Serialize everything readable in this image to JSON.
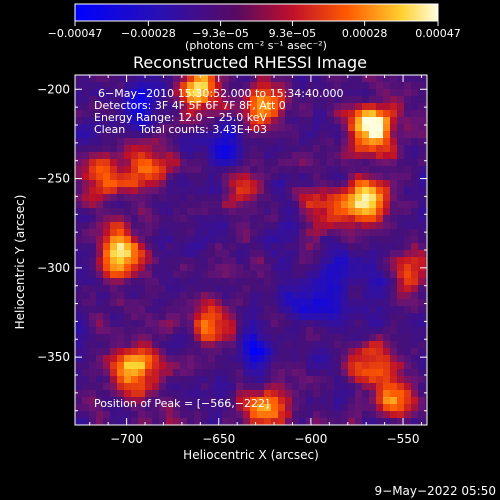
{
  "chart_data": {
    "type": "heatmap",
    "title": "Reconstructed RHESSI Image",
    "xlabel": "Heliocentric X (arcsec)",
    "ylabel": "Heliocentric Y (arcsec)",
    "xlim": [
      -728,
      -537
    ],
    "ylim": [
      -388,
      -192
    ],
    "x_ticks": [
      {
        "value": -700,
        "label": "−700"
      },
      {
        "value": -650,
        "label": "−650"
      },
      {
        "value": -600,
        "label": "−600"
      },
      {
        "value": -550,
        "label": "−550"
      }
    ],
    "y_ticks": [
      {
        "value": -200,
        "label": "−200"
      },
      {
        "value": -250,
        "label": "−250"
      },
      {
        "value": -300,
        "label": "−300"
      },
      {
        "value": -350,
        "label": "−350"
      }
    ],
    "colorbar": {
      "range": [
        -0.00047,
        0.00047
      ],
      "ticks": [
        {
          "value": -0.00047,
          "label": "−0.00047"
        },
        {
          "value": -0.00028,
          "label": "−0.00028"
        },
        {
          "value": -9.3e-05,
          "label": "−9.3e−05"
        },
        {
          "value": 9.3e-05,
          "label": "9.3e−05"
        },
        {
          "value": 0.00028,
          "label": "0.00028"
        },
        {
          "value": 0.00047,
          "label": "0.00047"
        }
      ],
      "unit_label": "(photons cm⁻² s⁻¹ asec⁻²)"
    },
    "annotations": [
      "6−May−2010 15:30:52.000 to 15:34:40.000",
      "Detectors: 3F 4F 5F 6F 7F 8F, Att 0",
      "Energy Range: 12.0 − 25.0 keV",
      "Clean    Total counts: 3.43E+03"
    ],
    "peak_label": "Position of Peak = [−566,−222]",
    "peak": {
      "x": -566,
      "y": -222
    },
    "hotspots": [
      {
        "x": -566,
        "y": -222,
        "level": 1.0
      },
      {
        "x": -570,
        "y": -262,
        "level": 0.85
      },
      {
        "x": -702,
        "y": -292,
        "level": 0.8
      },
      {
        "x": -662,
        "y": -200,
        "level": 0.65
      },
      {
        "x": -625,
        "y": -210,
        "level": 0.55
      },
      {
        "x": -695,
        "y": -355,
        "level": 0.75
      },
      {
        "x": -712,
        "y": -250,
        "level": 0.5
      },
      {
        "x": -688,
        "y": -245,
        "level": 0.55
      },
      {
        "x": -655,
        "y": -330,
        "level": 0.5
      },
      {
        "x": -625,
        "y": -380,
        "level": 0.55
      },
      {
        "x": -565,
        "y": -355,
        "level": 0.55
      },
      {
        "x": -555,
        "y": -375,
        "level": 0.45
      },
      {
        "x": -545,
        "y": -300,
        "level": 0.45
      },
      {
        "x": -595,
        "y": -270,
        "level": 0.35
      },
      {
        "x": -640,
        "y": -255,
        "level": 0.35
      }
    ],
    "coldspots": [
      {
        "x": -645,
        "y": -232,
        "level": 0.7
      },
      {
        "x": -600,
        "y": -320,
        "level": 0.7
      },
      {
        "x": -583,
        "y": -300,
        "level": 0.6
      },
      {
        "x": -630,
        "y": -345,
        "level": 0.5
      },
      {
        "x": -690,
        "y": -205,
        "level": 0.45
      }
    ],
    "grid": false
  },
  "timestamp": "9−May−2022 05:50"
}
